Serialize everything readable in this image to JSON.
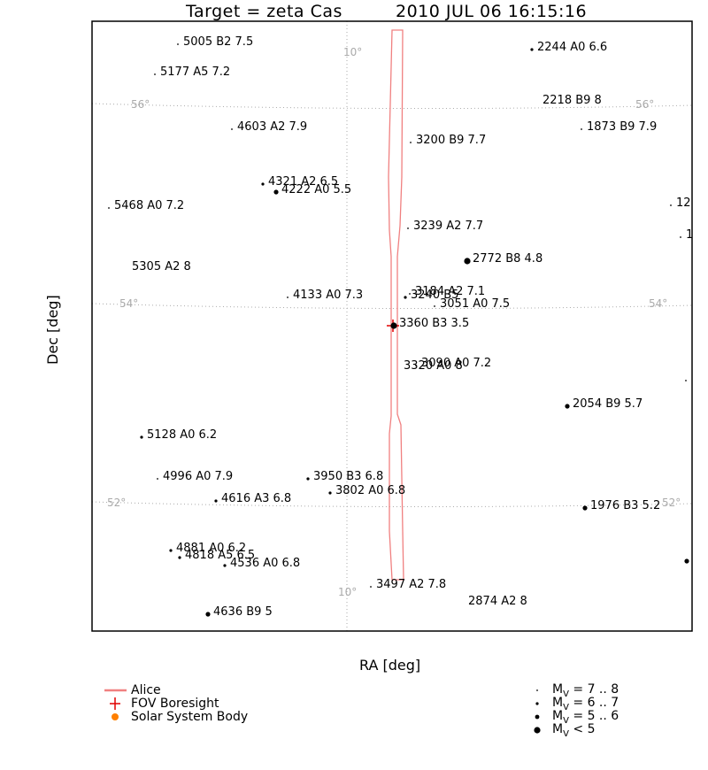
{
  "title": {
    "target": "Target = zeta Cas",
    "timestamp": "2010 JUL 06 16:15:16"
  },
  "axes": {
    "xlabel": "RA [deg]",
    "ylabel": "Dec [deg]"
  },
  "legend": {
    "items": [
      {
        "label": "Alice",
        "color": "#f08080"
      },
      {
        "label": "FOV Boresight",
        "color": "#e00000"
      },
      {
        "label": "Solar System Body",
        "color": "#ff8000"
      }
    ],
    "magnitude_classes": [
      {
        "label": "M",
        "sub": "V",
        "range": " = 7 .. 8"
      },
      {
        "label": "M",
        "sub": "V",
        "range": " = 6 .. 7"
      },
      {
        "label": "M",
        "sub": "V",
        "range": " = 5 .. 6"
      },
      {
        "label": "M",
        "sub": "V",
        "range": " < 5"
      }
    ]
  },
  "chart_data": {
    "type": "scatter",
    "projection": "sky map (RA/Dec)",
    "grid": {
      "dec_lines": [
        {
          "label": "56°"
        },
        {
          "label": "54°"
        },
        {
          "label": "52°"
        }
      ],
      "ra_line_label": "10°"
    },
    "stars": [
      {
        "label": "5005 B2 7.5",
        "mag": 7.5
      },
      {
        "label": "2244 A0 6.6",
        "mag": 6.6
      },
      {
        "label": "5177 A5 7.2",
        "mag": 7.2
      },
      {
        "label": "2218 B9 8",
        "mag": 8
      },
      {
        "label": "4603 A2 7.9",
        "mag": 7.9
      },
      {
        "label": "3200 B9 7.7",
        "mag": 7.7
      },
      {
        "label": "1873 B9 7.9",
        "mag": 7.9
      },
      {
        "label": "4321 A2 6.5",
        "mag": 6.5
      },
      {
        "label": "4222 A0 5.5",
        "mag": 5.5
      },
      {
        "label": "5468 A0 7.2",
        "mag": 7.2
      },
      {
        "label": "12",
        "mag": 7.5
      },
      {
        "label": "3239 A2 7.7",
        "mag": 7.7
      },
      {
        "label": "1",
        "mag": 7.5
      },
      {
        "label": "2772 B8 4.8",
        "mag": 4.8
      },
      {
        "label": "5305 A2 8",
        "mag": 8
      },
      {
        "label": "4133 A0 7.3",
        "mag": 7.3
      },
      {
        "label": "3184 A2 7.1",
        "mag": 7.1
      },
      {
        "label": "3240 B5",
        "mag": 6.0
      },
      {
        "label": "3051 A0 7.5",
        "mag": 7.5
      },
      {
        "label": "3360 B3 3.5",
        "mag": 3.5
      },
      {
        "label": "3090 A0 7.2",
        "mag": 7.2
      },
      {
        "label": "3320 A0 8",
        "mag": 8
      },
      {
        "label": "",
        "mag": 7.8
      },
      {
        "label": "2054 B9 5.7",
        "mag": 5.7
      },
      {
        "label": "5128 A0 6.2",
        "mag": 6.2
      },
      {
        "label": "4996 A0 7.9",
        "mag": 7.9
      },
      {
        "label": "3950 B3 6.8",
        "mag": 6.8
      },
      {
        "label": "3802 A0 6.8",
        "mag": 6.8
      },
      {
        "label": "4616 A3 6.8",
        "mag": 6.8
      },
      {
        "label": "1976 B3 5.2",
        "mag": 5.2
      },
      {
        "label": "4881 A0 6.2",
        "mag": 6.2
      },
      {
        "label": "4818 A5 6.5",
        "mag": 6.5
      },
      {
        "label": "4536 A0 6.8",
        "mag": 6.8
      },
      {
        "label": "",
        "mag": 5.5
      },
      {
        "label": "3497 A2 7.8",
        "mag": 7.8
      },
      {
        "label": "2874 A2 8",
        "mag": 8
      },
      {
        "label": "4636 B9 5",
        "mag": 5.0
      }
    ]
  }
}
